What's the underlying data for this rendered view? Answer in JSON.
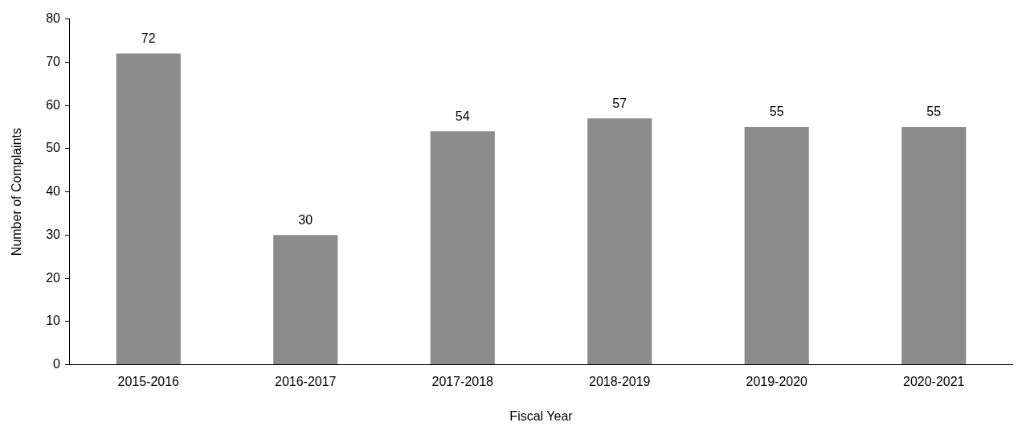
{
  "chart_data": {
    "type": "bar",
    "xlabel": "Fiscal Year",
    "ylabel": "Number of Complaints",
    "categories": [
      "2015-2016",
      "2016-2017",
      "2017-2018",
      "2018-2019",
      "2019-2020",
      "2020-2021"
    ],
    "values": [
      72,
      30,
      54,
      57,
      55,
      55
    ],
    "color": "#8c8c8c",
    "ylim": [
      0,
      80
    ],
    "yticks": [
      0,
      10,
      20,
      30,
      40,
      50,
      60,
      70,
      80
    ],
    "grid": false,
    "legend": false,
    "data_labels": true
  }
}
